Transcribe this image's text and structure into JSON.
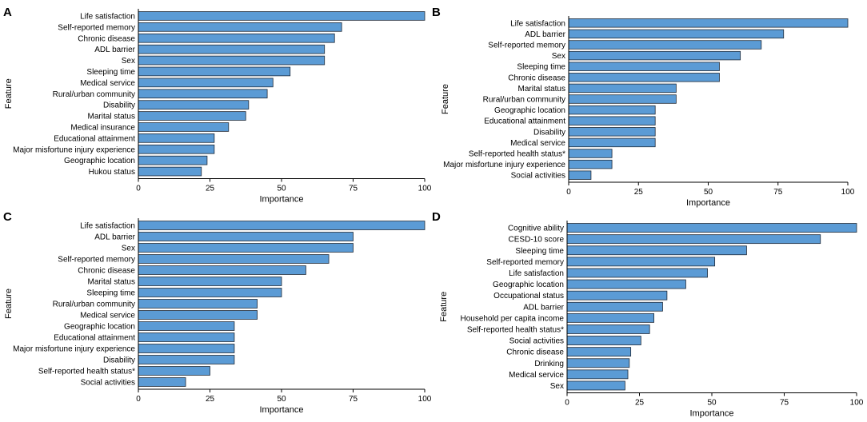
{
  "figure": {
    "colors": {
      "bar_fill": "#5b9bd5",
      "bar_edge": "#1f2a38",
      "axis": "#000000"
    }
  },
  "chart_data": [
    {
      "panel": "A",
      "type": "bar",
      "orientation": "horizontal",
      "xlabel": "Importance",
      "ylabel": "Feature",
      "xlim": [
        0,
        100
      ],
      "xticks": [
        0,
        25,
        50,
        75,
        100
      ],
      "categories": [
        "Life satisfaction",
        "Self-reported memory",
        "Chronic disease",
        "ADL barrier",
        "Sex",
        "Sleeping time",
        "Medical service",
        "Rural/urban community",
        "Disability",
        "Marital status",
        "Medical insurance",
        "Educational attainment",
        "Major misfortune injury experience",
        "Geographic location",
        "Hukou status"
      ],
      "values": [
        100,
        71,
        68.5,
        65,
        65,
        53,
        47,
        45,
        38.5,
        37.5,
        31.5,
        26.5,
        26.5,
        24,
        22
      ]
    },
    {
      "panel": "B",
      "type": "bar",
      "orientation": "horizontal",
      "xlabel": "Importance",
      "ylabel": "Feature",
      "xlim": [
        0,
        100
      ],
      "xticks": [
        0,
        25,
        50,
        75,
        100
      ],
      "categories": [
        "Life satisfaction",
        "ADL barrier",
        "Self-reported memory",
        "Sex",
        "Sleeping time",
        "Chronic disease",
        "Marital status",
        "Rural/urban community",
        "Geographic location",
        "Educational attainment",
        "Disability",
        "Medical service",
        "Self-reported health status*",
        "Major misfortune injury experience",
        "Social activities"
      ],
      "values": [
        100,
        77,
        69,
        61.5,
        54,
        54,
        38.5,
        38.5,
        31,
        31,
        31,
        31,
        15.5,
        15.5,
        8
      ]
    },
    {
      "panel": "C",
      "type": "bar",
      "orientation": "horizontal",
      "xlabel": "Importance",
      "ylabel": "Feature",
      "xlim": [
        0,
        100
      ],
      "xticks": [
        0,
        25,
        50,
        75,
        100
      ],
      "categories": [
        "Life satisfaction",
        "ADL barrier",
        "Sex",
        "Self-reported memory",
        "Chronic disease",
        "Marital status",
        "Sleeping time",
        "Rural/urban community",
        "Medical service",
        "Geographic location",
        "Educational attainment",
        "Major misfortune injury experience",
        "Disability",
        "Self-reported health status*",
        "Social activities"
      ],
      "values": [
        100,
        75,
        75,
        66.5,
        58.5,
        50,
        50,
        41.5,
        41.5,
        33.5,
        33.5,
        33.5,
        33.5,
        25,
        16.5
      ]
    },
    {
      "panel": "D",
      "type": "bar",
      "orientation": "horizontal",
      "xlabel": "Importance",
      "ylabel": "Feature",
      "xlim": [
        0,
        100
      ],
      "xticks": [
        0,
        25,
        50,
        75,
        100
      ],
      "categories": [
        "Cognitive ability",
        "CESD-10 score",
        "Sleeping time",
        "Self-reported memory",
        "Life satisfaction",
        "Geographic location",
        "Occupational status",
        "ADL barrier",
        "Household per capita income",
        "Self-reported health status*",
        "Social activities",
        "Chronic disease",
        "Drinking",
        "Medical service",
        "Sex"
      ],
      "values": [
        100,
        87.5,
        62,
        51,
        48.5,
        41,
        34.5,
        33,
        30,
        28.5,
        25.5,
        22,
        21.5,
        21,
        20
      ]
    }
  ]
}
